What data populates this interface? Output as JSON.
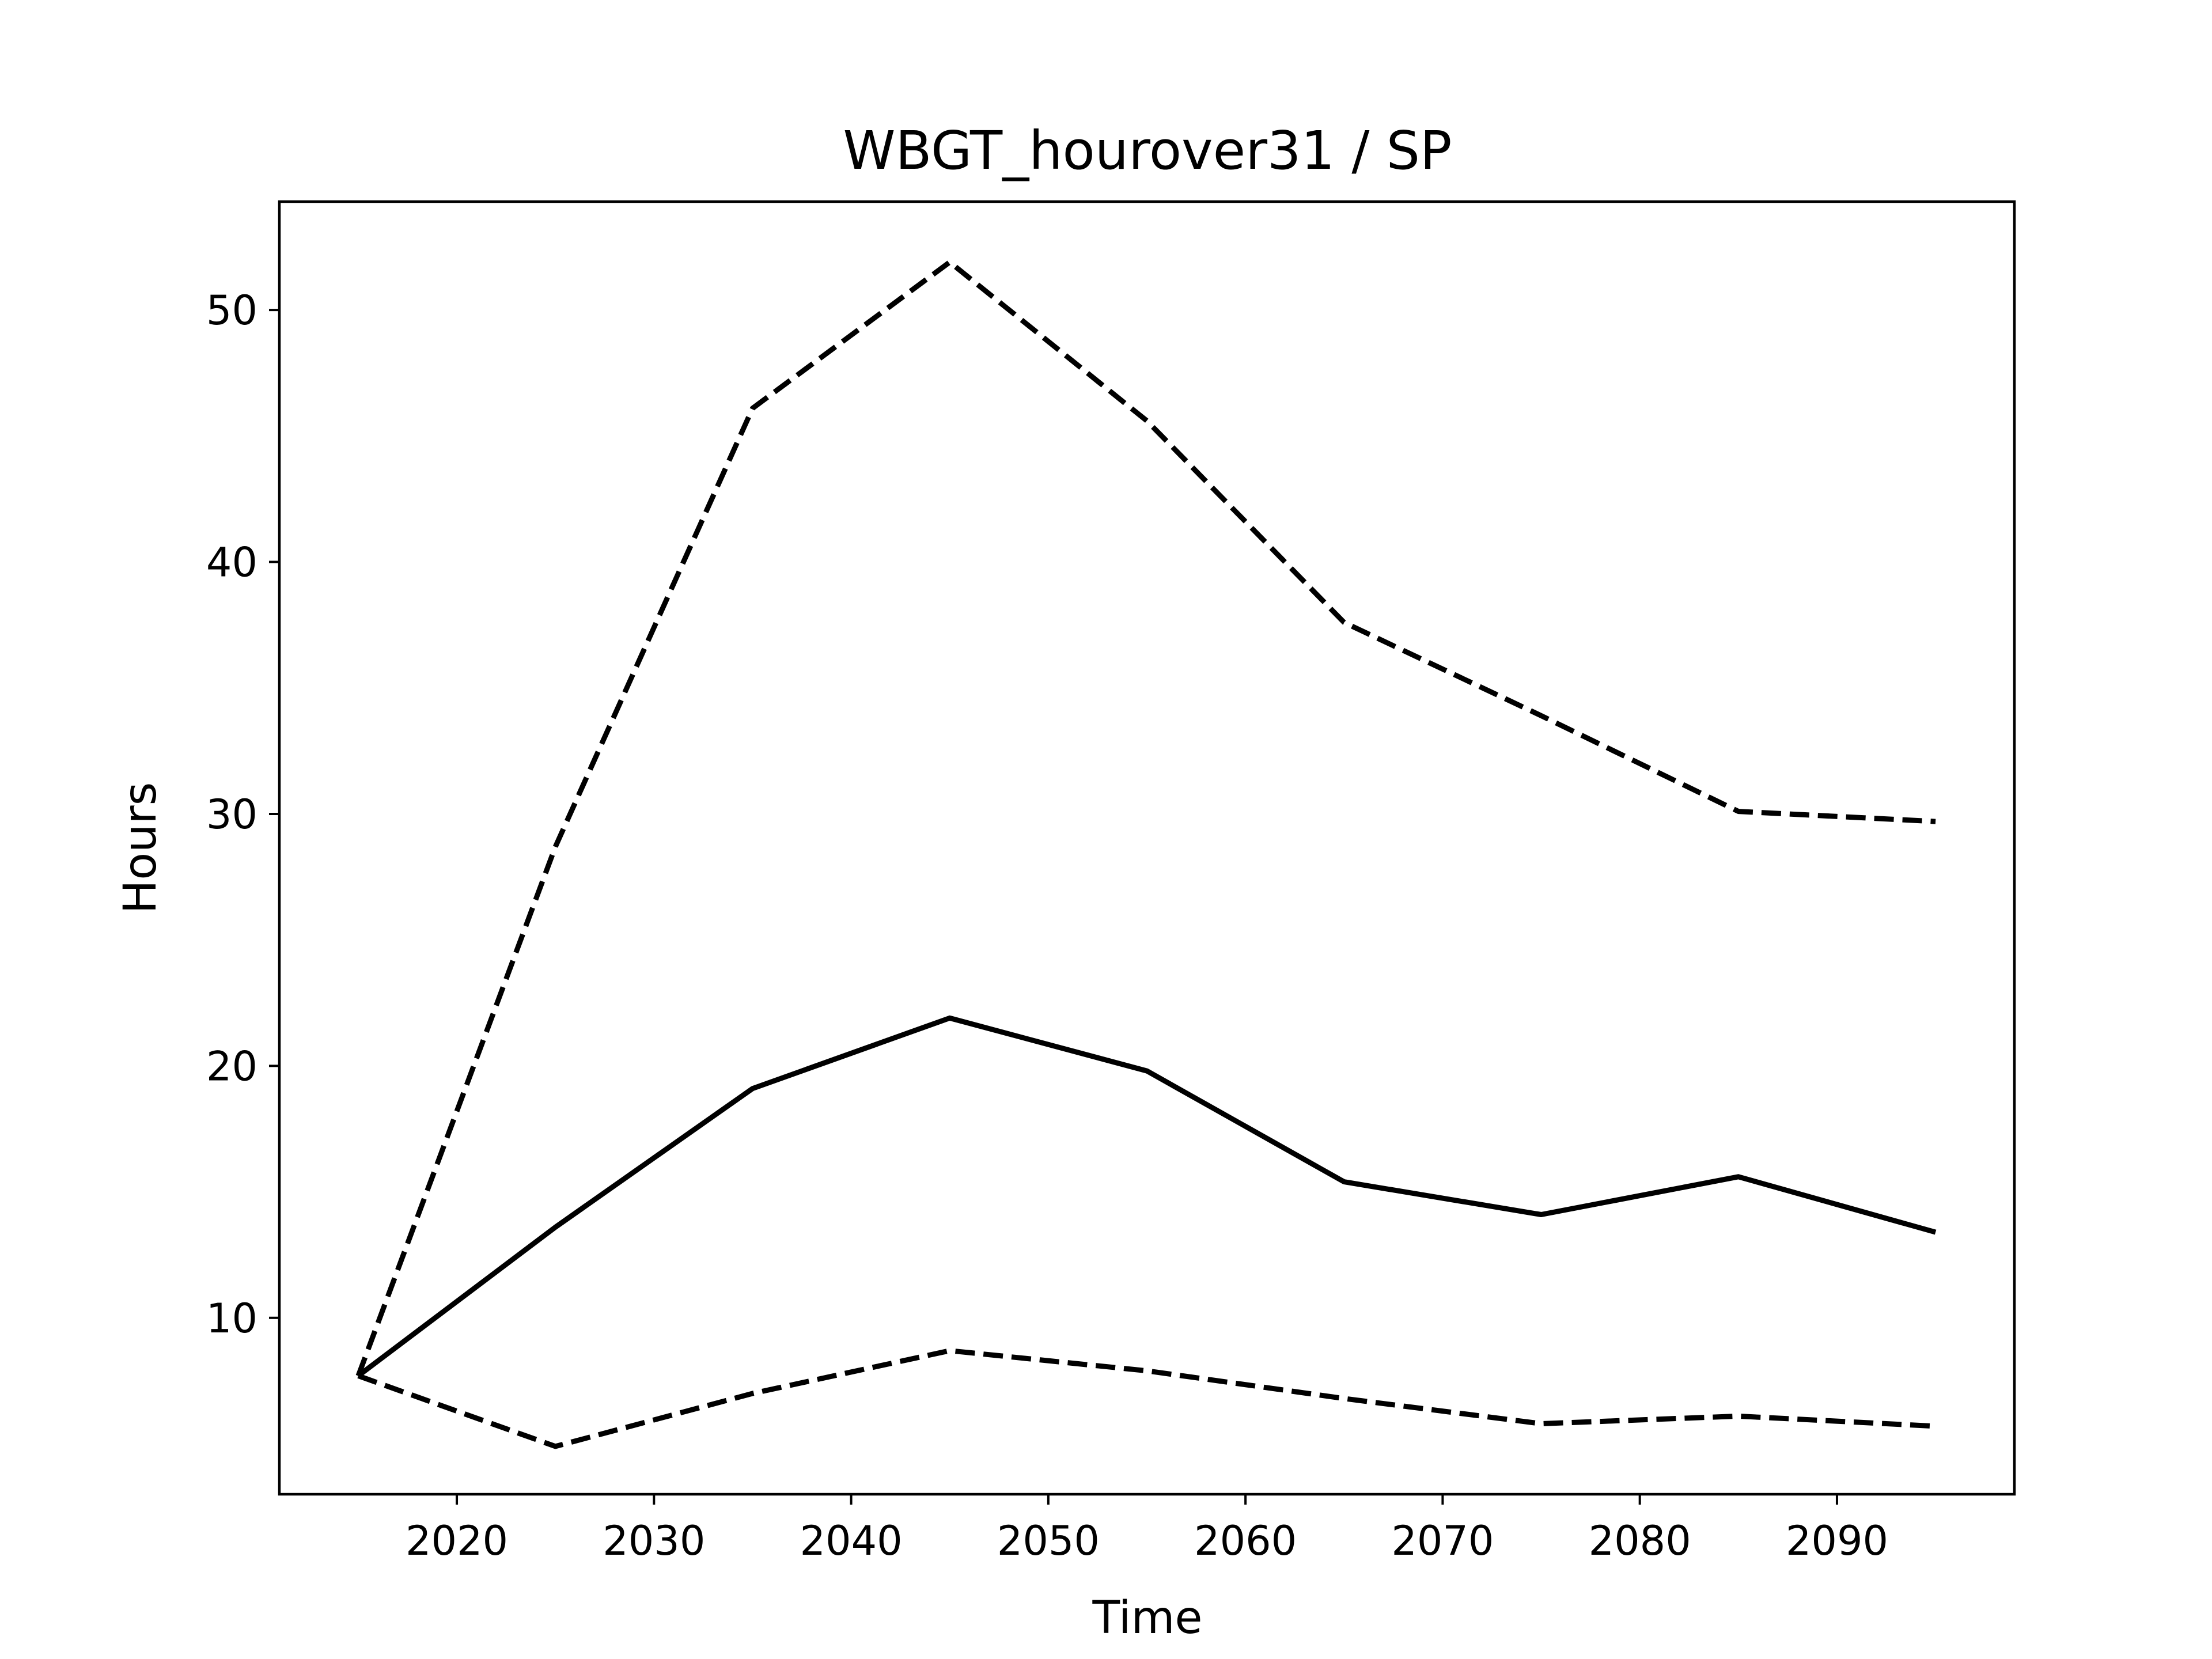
{
  "chart_data": {
    "type": "line",
    "title": "WBGT_hourover31 / SP",
    "xlabel": "Time",
    "ylabel": "Hours",
    "xlim": [
      2011,
      2099
    ],
    "ylim": [
      3,
      54.3
    ],
    "xticks": [
      2020,
      2030,
      2040,
      2050,
      2060,
      2070,
      2080,
      2090
    ],
    "yticks": [
      10,
      20,
      30,
      40,
      50
    ],
    "grid": false,
    "legend": "none",
    "x": [
      2015,
      2025,
      2035,
      2045,
      2055,
      2065,
      2075,
      2085,
      2095
    ],
    "series": [
      {
        "values": [
          7.7,
          28.7,
          46.1,
          51.9,
          45.6,
          37.6,
          33.9,
          30.1,
          29.7
        ],
        "style": "dashed",
        "color": "#000000"
      },
      {
        "values": [
          7.7,
          13.6,
          19.1,
          21.9,
          19.8,
          15.4,
          14.1,
          15.6,
          13.4
        ],
        "style": "solid",
        "color": "#000000"
      },
      {
        "values": [
          7.7,
          4.9,
          7.0,
          8.7,
          7.9,
          6.8,
          5.8,
          6.1,
          5.7
        ],
        "style": "dashed",
        "color": "#000000"
      }
    ]
  }
}
